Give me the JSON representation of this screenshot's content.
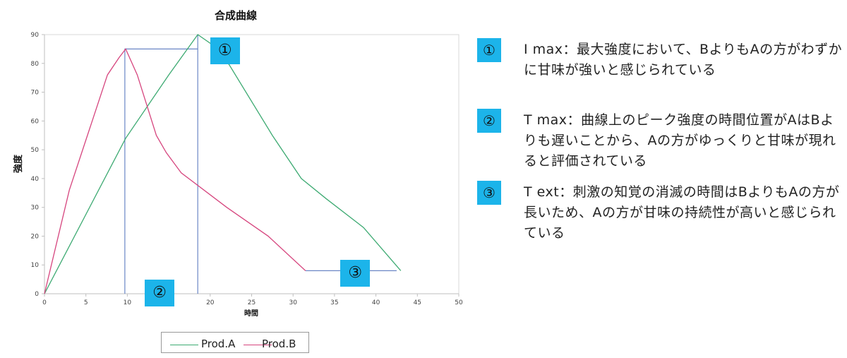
{
  "chart_data": {
    "type": "line",
    "title": "合成曲線",
    "xlabel": "時間",
    "ylabel": "強度",
    "xlim": [
      0,
      50
    ],
    "ylim": [
      0,
      90
    ],
    "xticks": [
      0,
      5,
      10,
      15,
      20,
      25,
      30,
      35,
      40,
      45,
      50
    ],
    "yticks": [
      0,
      10,
      20,
      30,
      40,
      50,
      60,
      70,
      80,
      90
    ],
    "legend_position": "bottom",
    "series": [
      {
        "name": "Prod.A",
        "color": "#3daa72",
        "x": [
          0,
          9.8,
          15,
          18.5,
          20,
          22.3,
          27.5,
          31,
          34,
          38.5,
          43
        ],
        "y": [
          0,
          54,
          76,
          90,
          87,
          79.5,
          55,
          40,
          33,
          23,
          8
        ]
      },
      {
        "name": "Prod.B",
        "color": "#d6457e",
        "x": [
          0,
          3,
          7.6,
          9,
          9.8,
          11.2,
          13.5,
          14.7,
          16.5,
          22,
          27,
          31.5
        ],
        "y": [
          0,
          36,
          76,
          82,
          85,
          76,
          55,
          49,
          42,
          30,
          20,
          8
        ]
      }
    ],
    "reference_lines": [
      {
        "points": [
          [
            9.7,
            0
          ],
          [
            9.7,
            85
          ],
          [
            18.5,
            85
          ]
        ],
        "color": "#6a86c6"
      },
      {
        "points": [
          [
            18.5,
            0
          ],
          [
            18.5,
            90
          ]
        ],
        "color": "#6a86c6"
      },
      {
        "points": [
          [
            31.5,
            8
          ],
          [
            42.5,
            8
          ]
        ],
        "color": "#6a86c6"
      }
    ],
    "annotations": [
      {
        "label": "①",
        "x": 21.7,
        "y": 87
      },
      {
        "label": "②",
        "x": 13.9,
        "y": 0
      },
      {
        "label": "③",
        "x": 37.5,
        "y": 8
      }
    ]
  },
  "notes": [
    {
      "badge": "①",
      "text": "I max：最大強度において、BよりもAの方がわずかに甘味が強いと感じられている"
    },
    {
      "badge": "②",
      "text": "T max：曲線上のピーク強度の時間位置がAはBよりも遅いことから、Aの方がゆっくりと甘味が現れると評価されている"
    },
    {
      "badge": "③",
      "text": "T ext：刺激の知覚の消滅の時間はBよりもAの方が長いため、Aの方が甘味の持続性が高いと感じられている"
    }
  ]
}
